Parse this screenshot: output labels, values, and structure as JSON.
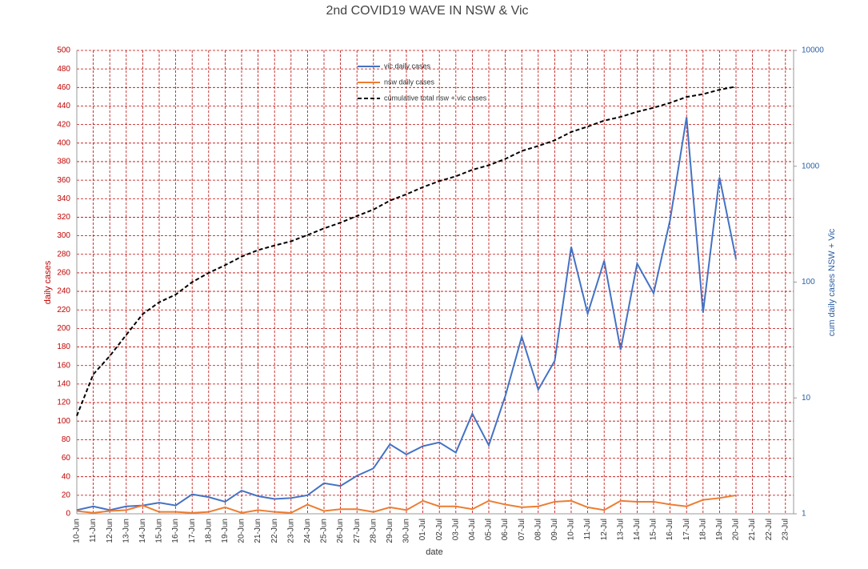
{
  "chart_data": {
    "type": "line",
    "title": "2nd COVID19 WAVE IN NSW & Vic",
    "x_label": "date",
    "y_label": "daily cases",
    "y2_label": "cum daily cases NSW + Vic",
    "categories": [
      "10-Jun",
      "11-Jun",
      "12-Jun",
      "13-Jun",
      "14-Jun",
      "15-Jun",
      "16-Jun",
      "17-Jun",
      "18-Jun",
      "19-Jun",
      "20-Jun",
      "21-Jun",
      "22-Jun",
      "23-Jun",
      "24-Jun",
      "25-Jun",
      "26-Jun",
      "27-Jun",
      "28-Jun",
      "29-Jun",
      "30-Jun",
      "01-Jul",
      "02-Jul",
      "03-Jul",
      "04-Jul",
      "05-Jul",
      "06-Jul",
      "07-Jul",
      "08-Jul",
      "09-Jul",
      "10-Jul",
      "11-Jul",
      "12-Jul",
      "13-Jul",
      "14-Jul",
      "15-Jul",
      "16-Jul",
      "17-Jul",
      "18-Jul",
      "19-Jul",
      "20-Jul",
      "21-Jul",
      "22-Jul",
      "23-Jul"
    ],
    "series": [
      {
        "name": "vic daily cases",
        "color": "#4472c4",
        "dash": false,
        "values": [
          4,
          8,
          4,
          8,
          9,
          12,
          9,
          21,
          18,
          13,
          25,
          19,
          16,
          17,
          20,
          33,
          30,
          41,
          49,
          75,
          64,
          73,
          77,
          66,
          108,
          74,
          127,
          191,
          134,
          165,
          288,
          216,
          273,
          177,
          270,
          238,
          317,
          428,
          217,
          363,
          275,
          null,
          null,
          null
        ]
      },
      {
        "name": "nsw daily cases",
        "color": "#ed7d31",
        "dash": false,
        "values": [
          3,
          1,
          3,
          4,
          9,
          2,
          2,
          1,
          2,
          7,
          1,
          4,
          2,
          1,
          10,
          3,
          5,
          5,
          2,
          7,
          4,
          14,
          8,
          8,
          5,
          14,
          10,
          7,
          8,
          13,
          14,
          7,
          4,
          14,
          13,
          13,
          10,
          8,
          15,
          17,
          20,
          null,
          null,
          null
        ]
      },
      {
        "name": "cumulative total nsw + vic cases",
        "color": "#000000",
        "dash": true,
        "axis": "y2",
        "values": [
          7,
          16,
          23,
          35,
          53,
          67,
          78,
          100,
          120,
          140,
          166,
          189,
          207,
          225,
          255,
          291,
          326,
          372,
          423,
          505,
          573,
          660,
          745,
          819,
          932,
          1020,
          1157,
          1355,
          1497,
          1675,
          1977,
          2200,
          2477,
          2668,
          2951,
          3202,
          3529,
          3965,
          4197,
          4577,
          4872,
          null,
          null,
          null
        ]
      }
    ],
    "ylim": [
      0,
      500
    ],
    "yticks": [
      0,
      20,
      40,
      60,
      80,
      100,
      120,
      140,
      160,
      180,
      200,
      220,
      240,
      260,
      280,
      300,
      320,
      340,
      360,
      380,
      400,
      420,
      440,
      460,
      480,
      500
    ],
    "y2lim": [
      1,
      10000
    ],
    "y2ticks": [
      1,
      10,
      100,
      1000,
      10000
    ],
    "y2_log": true,
    "grid": true,
    "grid_color": "#c00000",
    "y_axis_color": "#c00000",
    "y2_axis_color": "#2e5fa3"
  }
}
